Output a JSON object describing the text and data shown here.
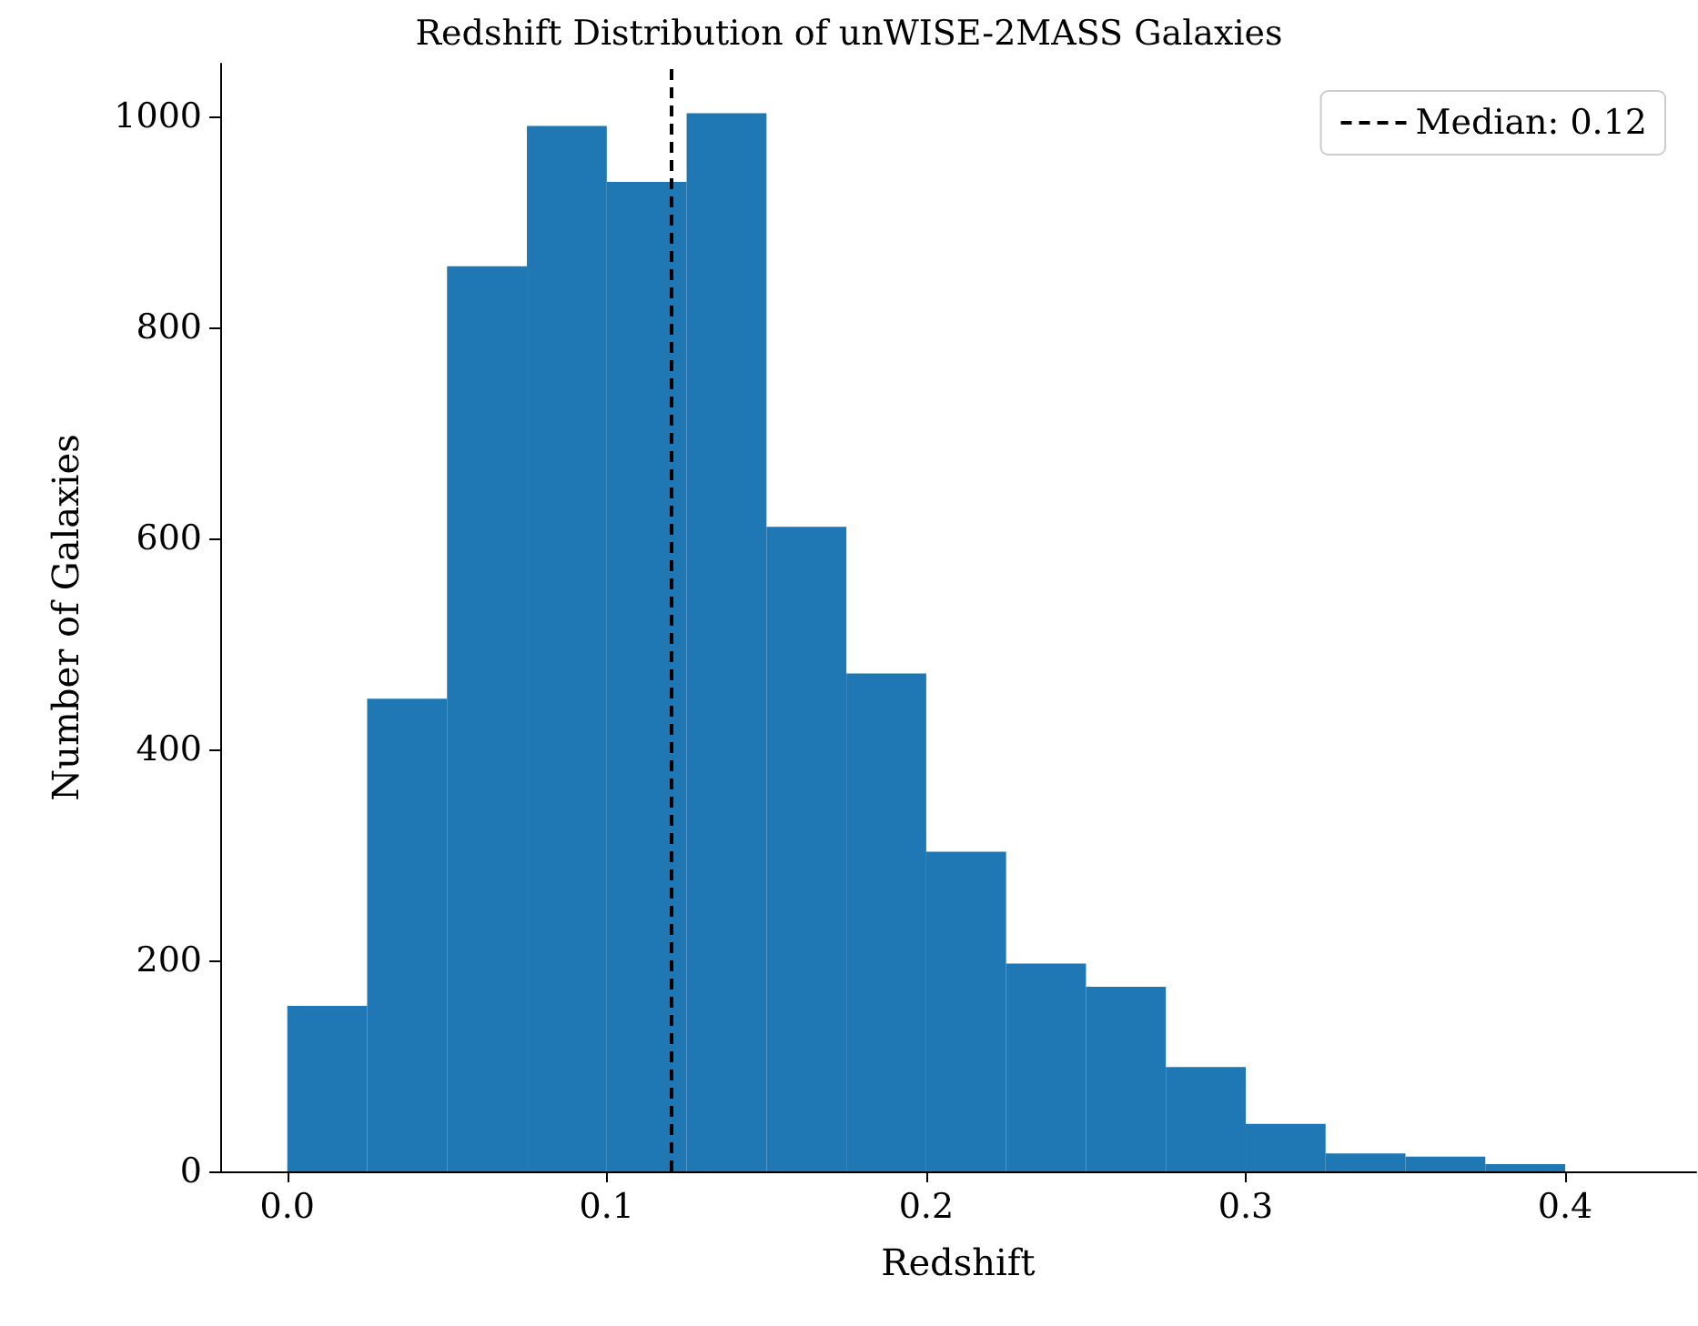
{
  "chart_data": {
    "type": "histogram",
    "title": "Redshift Distribution of unWISE-2MASS Galaxies",
    "xlabel": "Redshift",
    "ylabel": "Number of Galaxies",
    "bins": [
      0,
      0.025,
      0.05,
      0.075,
      0.1,
      0.125,
      0.15,
      0.175,
      0.2,
      0.225,
      0.25,
      0.275,
      0.3,
      0.325,
      0.35,
      0.375,
      0.4
    ],
    "values": [
      157,
      448,
      858,
      991,
      938,
      1003,
      611,
      472,
      303,
      197,
      175,
      99,
      45,
      17,
      14,
      7
    ],
    "color": "#1f77b4",
    "xlim": [
      -0.021,
      0.441
    ],
    "xticks": [
      {
        "value": 0,
        "label": "0.0"
      },
      {
        "value": 0.1,
        "label": "0.1"
      },
      {
        "value": 0.2,
        "label": "0.2"
      },
      {
        "value": 0.3,
        "label": "0.3"
      },
      {
        "value": 0.4,
        "label": "0.4"
      }
    ],
    "ylim": [
      0,
      1050
    ],
    "yticks": [
      0,
      200,
      400,
      600,
      800,
      1000
    ],
    "ref_lines": [
      {
        "axis": "x",
        "value": 0.12,
        "label": "Median: 0.12",
        "color": "#000000",
        "line_style": "dashed"
      }
    ],
    "grid": false,
    "legend": "top right"
  }
}
